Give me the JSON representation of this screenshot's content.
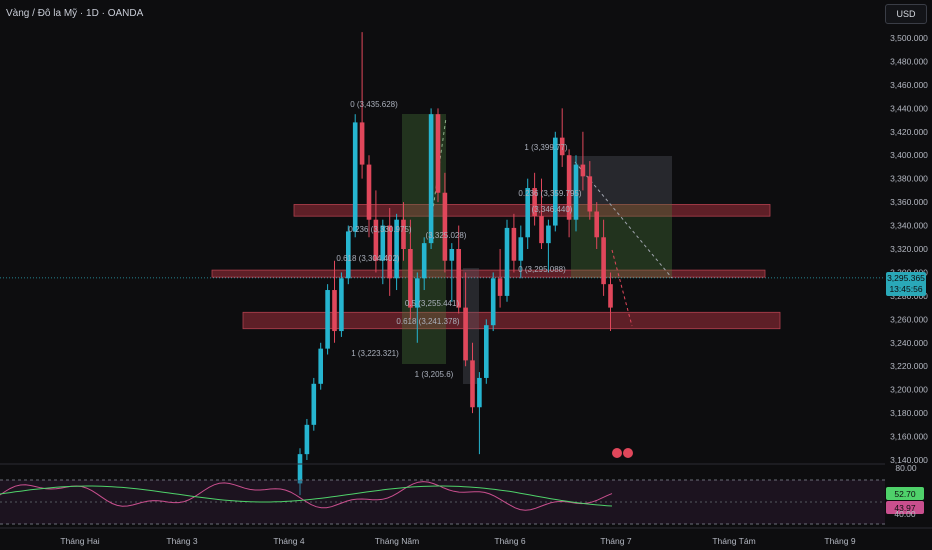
{
  "header": {
    "title": "Vàng / Đô la Mỹ · 1D · OANDA",
    "currency_button": "USD"
  },
  "colors": {
    "background": "#0d0d0f",
    "up": "#26b5d0",
    "down": "#e0475b",
    "zone_fill": "#7a2630",
    "long_zone": "#4a7a3c",
    "short_zone": "#5a5d66",
    "price_line": "#2aa8b8",
    "rsi_line": "#c94f8e",
    "rsi_ma": "#4fd16a"
  },
  "price_axis": {
    "ticks": [
      "3,500.000",
      "3,480.000",
      "3,460.000",
      "3,440.000",
      "3,420.000",
      "3,400.000",
      "3,380.000",
      "3,360.000",
      "3,340.000",
      "3,320.000",
      "3,300.000",
      "3,280.000",
      "3,260.000",
      "3,240.000",
      "3,220.000",
      "3,200.000",
      "3,180.000",
      "3,160.000",
      "3,140.000"
    ],
    "current_price": "3,295.365",
    "countdown": "13:45:56"
  },
  "time_axis": {
    "labels": [
      "Tháng Hai",
      "Tháng 3",
      "Tháng 4",
      "Tháng Năm",
      "Tháng 6",
      "Tháng 7",
      "Tháng Tám",
      "Tháng 9"
    ]
  },
  "annotations": [
    {
      "text": "0 (3,435.628)"
    },
    {
      "text": "1 (3,223.321)"
    },
    {
      "text": "0.236 (3,330.975)"
    },
    {
      "text": "(3,325.028)"
    },
    {
      "text": "0.618 (3,304.402)"
    },
    {
      "text": "0.5 (3,255.441)"
    },
    {
      "text": "0.618 (3,241.378)"
    },
    {
      "text": "1 (3,205.6)"
    },
    {
      "text": "1 (3,399.77)"
    },
    {
      "text": "0.236 (3,359.795)"
    },
    {
      "text": "(3,346.440)"
    },
    {
      "text": "0 (3,295.088)"
    }
  ],
  "zones": [
    {
      "top": 3358,
      "bottom": 3348
    },
    {
      "top": 3302,
      "bottom": 3296
    },
    {
      "top": 3266,
      "bottom": 3252
    }
  ],
  "rsi": {
    "axis_top": "80.00",
    "value_ma": "52.70",
    "value": "43.97",
    "value_lower": "40.00"
  },
  "chart_data": {
    "type": "candlestick",
    "title": "Vàng / Đô la Mỹ · 1D · OANDA",
    "ylim": [
      3140,
      3510
    ],
    "candles": [
      [
        3120,
        3150,
        3110,
        3145
      ],
      [
        3145,
        3175,
        3140,
        3170
      ],
      [
        3170,
        3210,
        3165,
        3205
      ],
      [
        3205,
        3240,
        3200,
        3235
      ],
      [
        3235,
        3290,
        3230,
        3285
      ],
      [
        3285,
        3310,
        3240,
        3250
      ],
      [
        3250,
        3300,
        3245,
        3295
      ],
      [
        3295,
        3340,
        3290,
        3335
      ],
      [
        3335,
        3435,
        3330,
        3428
      ],
      [
        3428,
        3505,
        3380,
        3392
      ],
      [
        3392,
        3400,
        3330,
        3345
      ],
      [
        3345,
        3370,
        3300,
        3310
      ],
      [
        3310,
        3345,
        3290,
        3340
      ],
      [
        3340,
        3355,
        3280,
        3295
      ],
      [
        3295,
        3350,
        3285,
        3345
      ],
      [
        3345,
        3360,
        3310,
        3320
      ],
      [
        3320,
        3345,
        3260,
        3270
      ],
      [
        3270,
        3300,
        3240,
        3295
      ],
      [
        3295,
        3330,
        3285,
        3325
      ],
      [
        3325,
        3440,
        3320,
        3435
      ],
      [
        3435,
        3440,
        3360,
        3368
      ],
      [
        3368,
        3385,
        3300,
        3310
      ],
      [
        3310,
        3325,
        3275,
        3320
      ],
      [
        3320,
        3340,
        3265,
        3270
      ],
      [
        3270,
        3300,
        3220,
        3225
      ],
      [
        3225,
        3240,
        3180,
        3185
      ],
      [
        3185,
        3215,
        3145,
        3210
      ],
      [
        3210,
        3260,
        3205,
        3255
      ],
      [
        3255,
        3300,
        3250,
        3295
      ],
      [
        3295,
        3320,
        3270,
        3280
      ],
      [
        3280,
        3345,
        3275,
        3338
      ],
      [
        3338,
        3350,
        3300,
        3310
      ],
      [
        3310,
        3340,
        3295,
        3330
      ],
      [
        3330,
        3380,
        3320,
        3372
      ],
      [
        3372,
        3385,
        3340,
        3348
      ],
      [
        3348,
        3380,
        3320,
        3325
      ],
      [
        3325,
        3345,
        3300,
        3340
      ],
      [
        3340,
        3420,
        3335,
        3415
      ],
      [
        3415,
        3440,
        3390,
        3400
      ],
      [
        3400,
        3405,
        3330,
        3345
      ],
      [
        3345,
        3400,
        3335,
        3392
      ],
      [
        3392,
        3420,
        3370,
        3382
      ],
      [
        3382,
        3395,
        3345,
        3352
      ],
      [
        3352,
        3360,
        3320,
        3330
      ],
      [
        3330,
        3345,
        3280,
        3290
      ],
      [
        3290,
        3300,
        3250,
        3270
      ]
    ]
  }
}
